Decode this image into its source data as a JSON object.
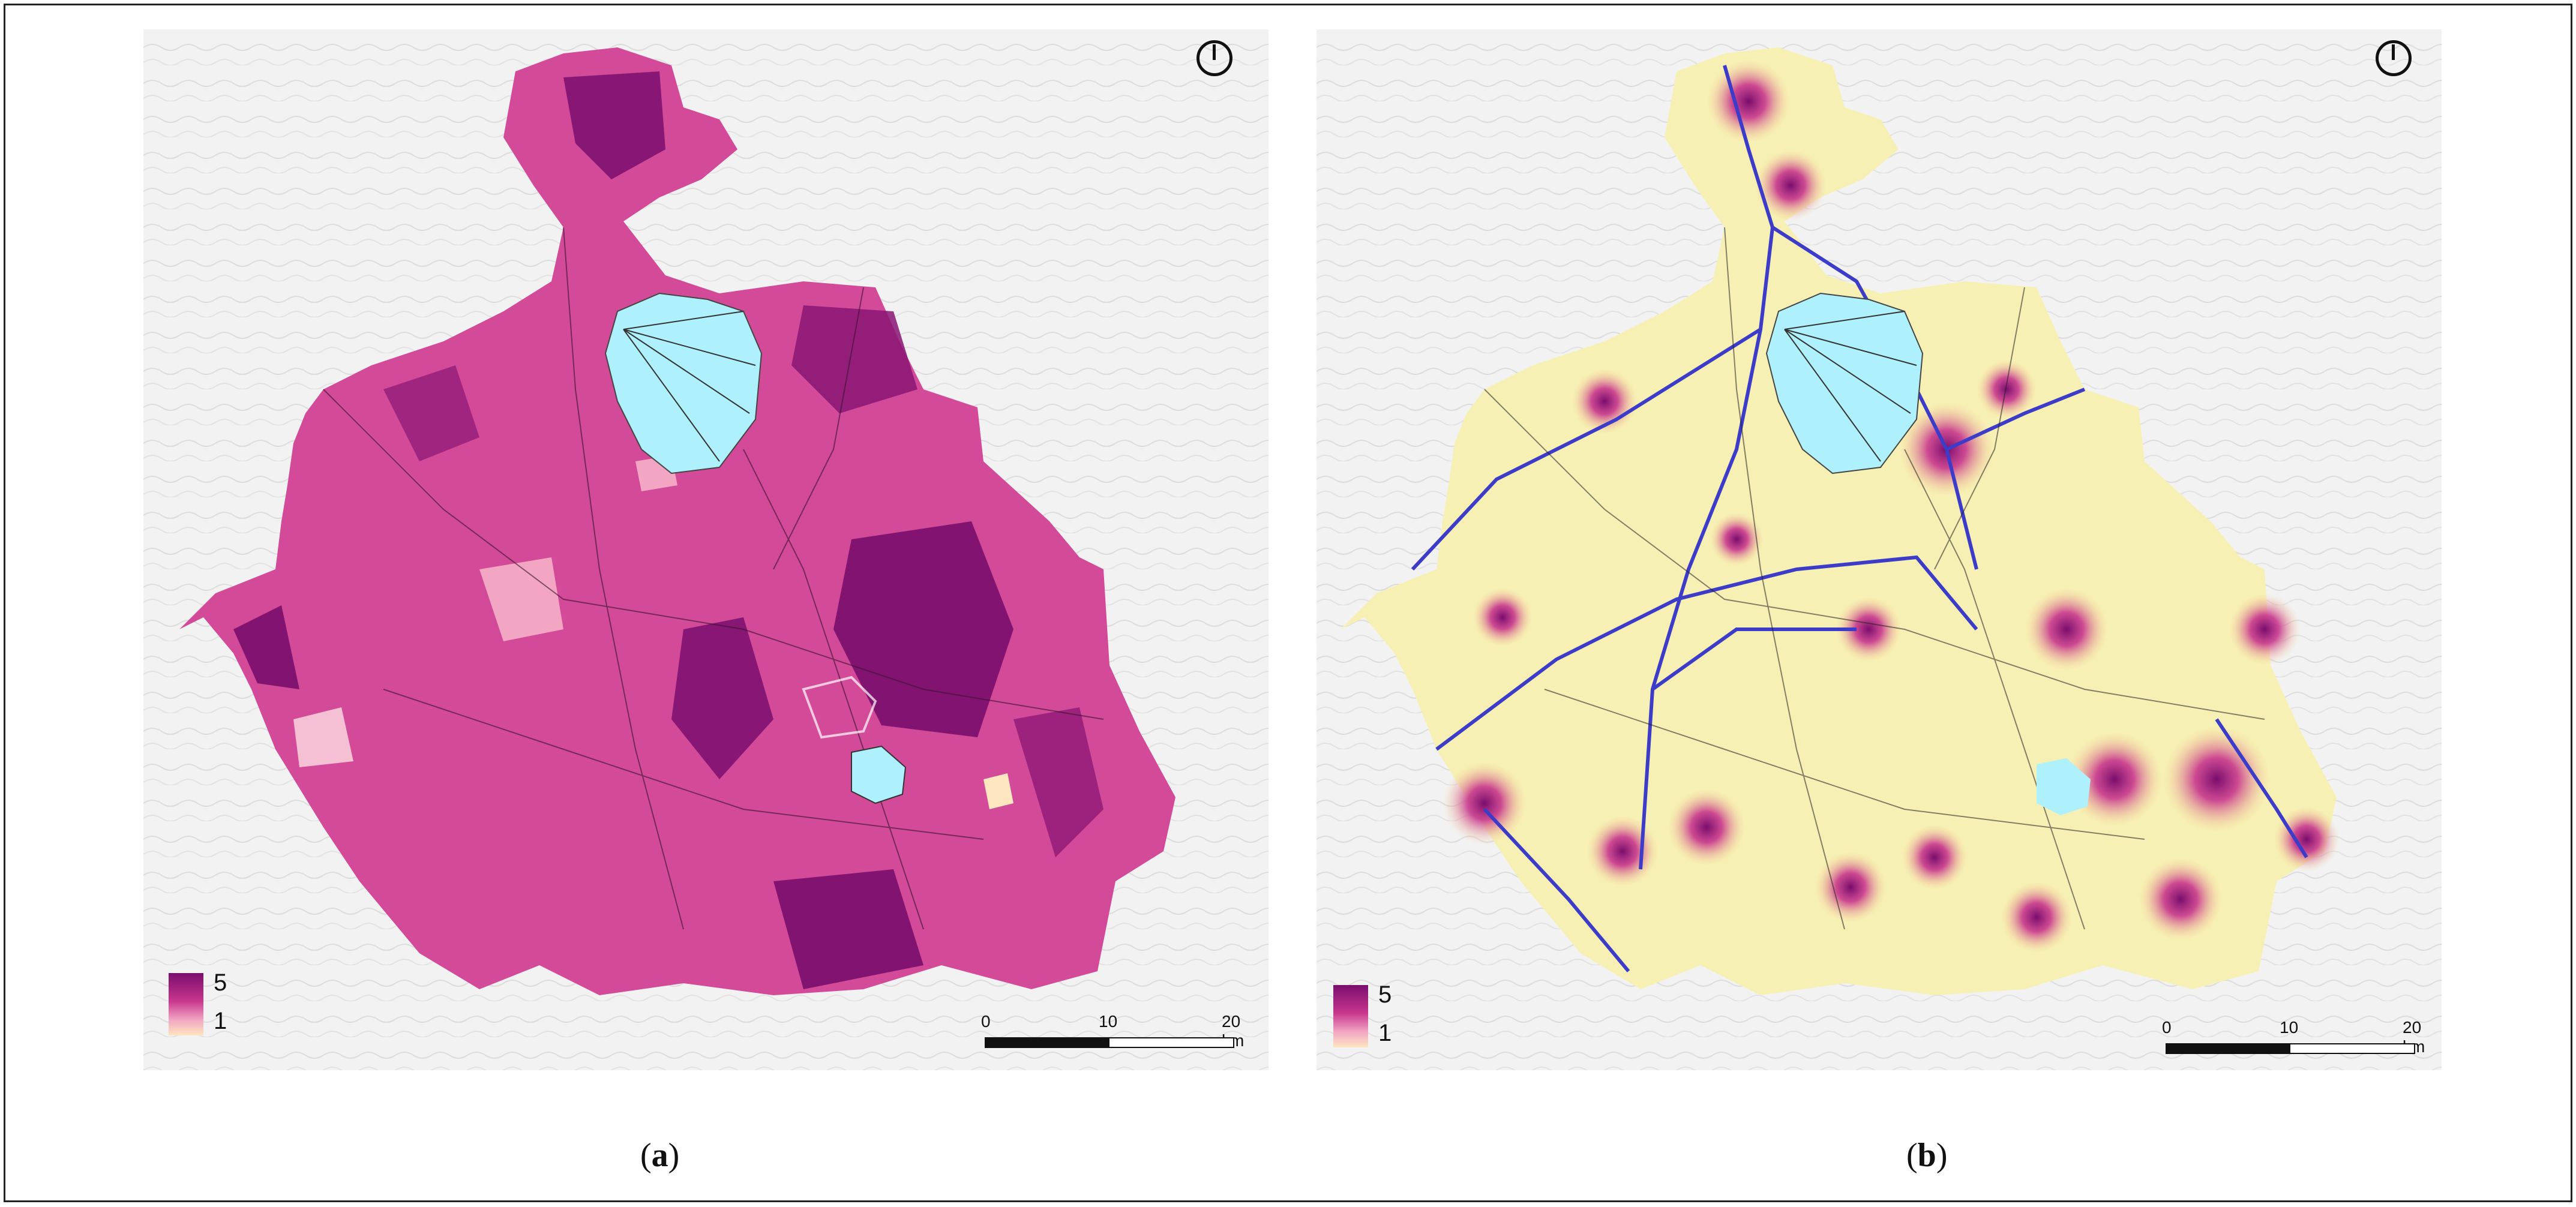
{
  "panels": [
    {
      "id": "a",
      "caption_open": "(",
      "caption_letter": "a",
      "caption_close": ")",
      "legend": {
        "max_label": "5",
        "min_label": "1"
      },
      "scale": {
        "t0": "0",
        "t1": "10",
        "t2": "20 km"
      }
    },
    {
      "id": "b",
      "caption_open": "(",
      "caption_letter": "b",
      "caption_close": ")",
      "legend": {
        "max_label": "5",
        "min_label": "1"
      },
      "scale": {
        "t0": "0",
        "t1": "10",
        "t2": "20 km"
      }
    }
  ],
  "colors": {
    "high": "#7a0d6d",
    "mid": "#c8378e",
    "low": "#fde6c0",
    "water": "#aef0fb",
    "roads": "#3c3cc8",
    "background": "#f2f2f2"
  },
  "icons": [
    "north-arrow-icon"
  ]
}
